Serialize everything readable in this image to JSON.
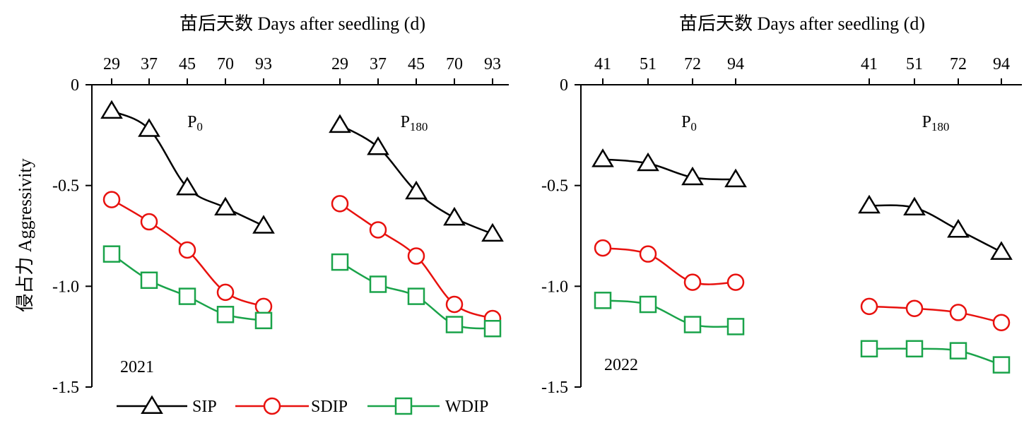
{
  "colors": {
    "SIP": "#000000",
    "SDIP": "#e8110e",
    "WDIP": "#1aa34a"
  },
  "chart_data": [
    {
      "type": "line",
      "year": "2021",
      "top_xlabel": "苗后天数 Days after seedling (d)",
      "ylabel": "侵占力 Aggressivity",
      "ylim": [
        -1.5,
        0
      ],
      "yticks": [
        0,
        -0.5,
        -1.0,
        -1.5
      ],
      "ytick_labels": [
        "0",
        "-0.5",
        "-1.0",
        "-1.5"
      ],
      "panels": [
        {
          "label": "P0",
          "label_main": "P",
          "label_sub": "0",
          "x": [
            29,
            37,
            45,
            70,
            93
          ],
          "tick_labels": [
            "29",
            "37",
            "45",
            "70",
            "93"
          ],
          "series": [
            {
              "name": "SIP",
              "marker": "triangle",
              "values": [
                -0.13,
                -0.22,
                -0.51,
                -0.61,
                -0.7
              ]
            },
            {
              "name": "SDIP",
              "marker": "circle",
              "values": [
                -0.57,
                -0.68,
                -0.82,
                -1.03,
                -1.1
              ]
            },
            {
              "name": "WDIP",
              "marker": "square",
              "values": [
                -0.84,
                -0.97,
                -1.05,
                -1.14,
                -1.17
              ]
            }
          ]
        },
        {
          "label": "P180",
          "label_main": "P",
          "label_sub": "180",
          "x": [
            29,
            37,
            45,
            70,
            93
          ],
          "tick_labels": [
            "29",
            "37",
            "45",
            "70",
            "93"
          ],
          "series": [
            {
              "name": "SIP",
              "marker": "triangle",
              "values": [
                -0.2,
                -0.31,
                -0.53,
                -0.66,
                -0.74
              ]
            },
            {
              "name": "SDIP",
              "marker": "circle",
              "values": [
                -0.59,
                -0.72,
                -0.85,
                -1.09,
                -1.16
              ]
            },
            {
              "name": "WDIP",
              "marker": "square",
              "values": [
                -0.88,
                -0.99,
                -1.05,
                -1.19,
                -1.21
              ]
            }
          ]
        }
      ]
    },
    {
      "type": "line",
      "year": "2022",
      "top_xlabel": "苗后天数 Days after seedling (d)",
      "ylim": [
        -1.5,
        0
      ],
      "yticks": [
        0,
        -0.5,
        -1.0,
        -1.5
      ],
      "ytick_labels": [
        "0",
        "-0.5",
        "-1.0",
        "-1.5"
      ],
      "panels": [
        {
          "label": "P0",
          "label_main": "P",
          "label_sub": "0",
          "x": [
            41,
            51,
            72,
            94
          ],
          "tick_labels": [
            "41",
            "51",
            "72",
            "94"
          ],
          "series": [
            {
              "name": "SIP",
              "marker": "triangle",
              "values": [
                -0.37,
                -0.39,
                -0.46,
                -0.47
              ]
            },
            {
              "name": "SDIP",
              "marker": "circle",
              "values": [
                -0.81,
                -0.84,
                -0.98,
                -0.98
              ]
            },
            {
              "name": "WDIP",
              "marker": "square",
              "values": [
                -1.07,
                -1.09,
                -1.19,
                -1.2
              ]
            }
          ]
        },
        {
          "label": "P180",
          "label_main": "P",
          "label_sub": "180",
          "x": [
            41,
            51,
            72,
            94
          ],
          "tick_labels": [
            "41",
            "51",
            "72",
            "94"
          ],
          "series": [
            {
              "name": "SIP",
              "marker": "triangle",
              "values": [
                -0.6,
                -0.61,
                -0.72,
                -0.83
              ]
            },
            {
              "name": "SDIP",
              "marker": "circle",
              "values": [
                -1.1,
                -1.11,
                -1.13,
                -1.18
              ]
            },
            {
              "name": "WDIP",
              "marker": "square",
              "values": [
                -1.31,
                -1.31,
                -1.32,
                -1.39
              ]
            }
          ]
        }
      ]
    }
  ],
  "legend": {
    "placement": "bottom",
    "items": [
      {
        "name": "SIP",
        "marker": "triangle"
      },
      {
        "name": "SDIP",
        "marker": "circle"
      },
      {
        "name": "WDIP",
        "marker": "square"
      }
    ]
  }
}
